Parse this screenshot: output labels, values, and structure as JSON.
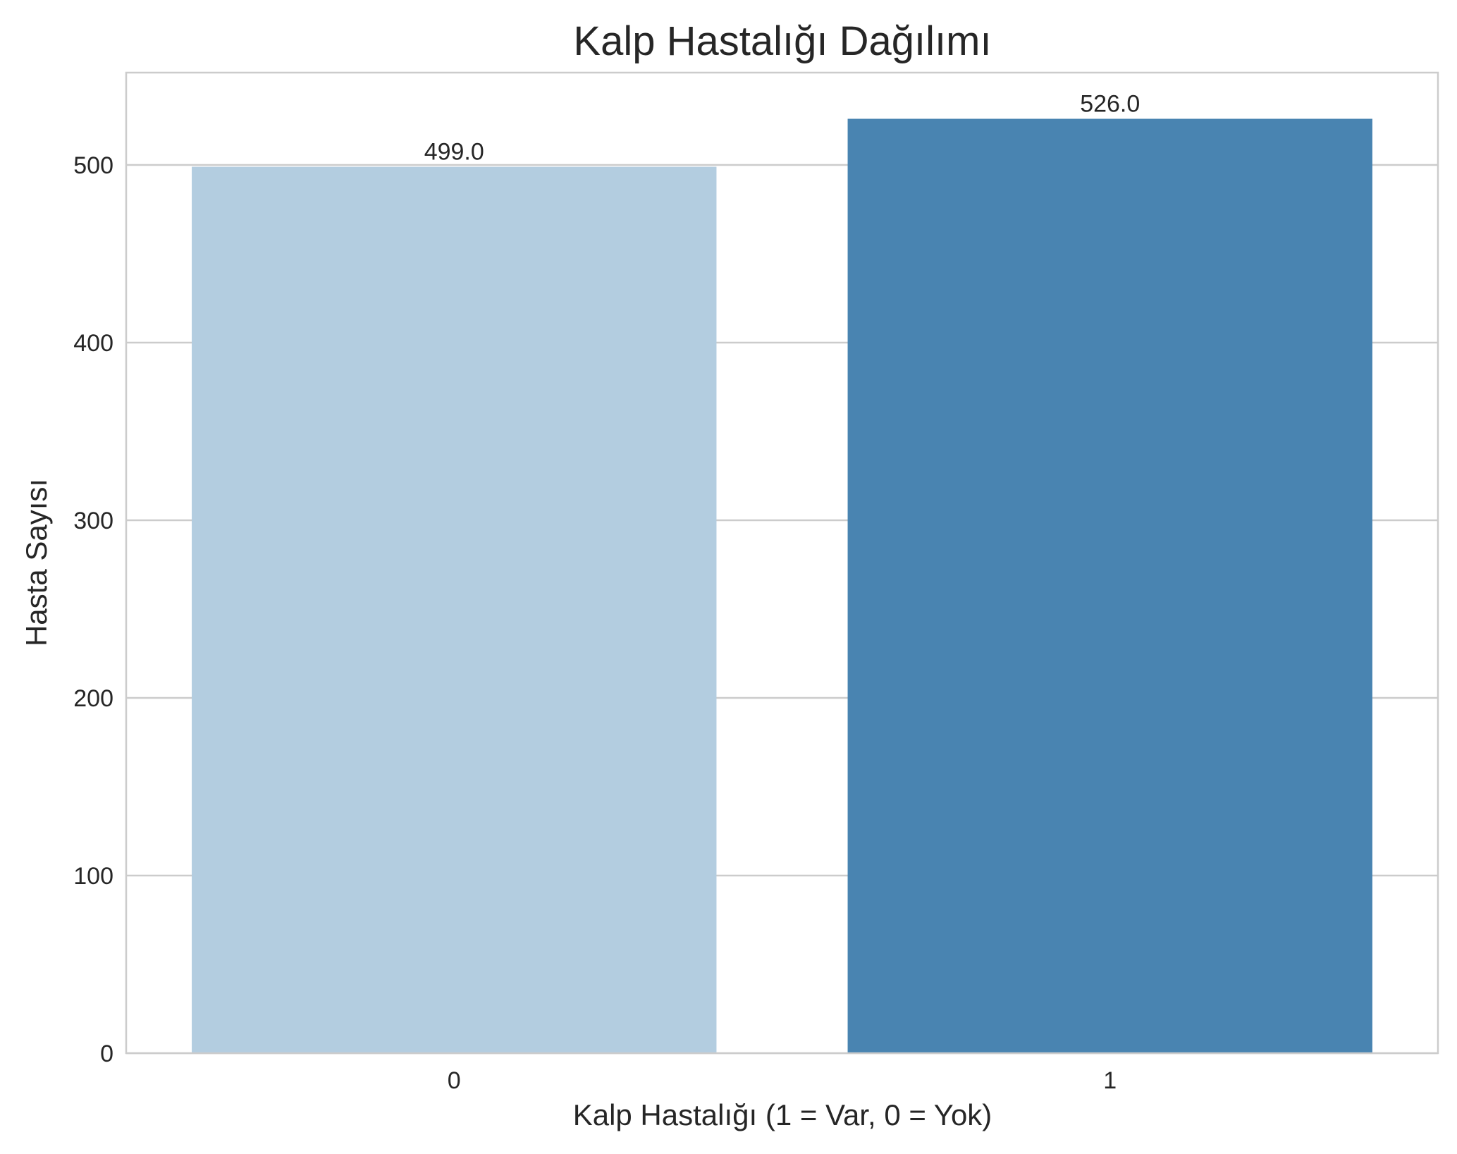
{
  "chart_data": {
    "type": "bar",
    "title": "Kalp Hastalığı Dağılımı",
    "xlabel": "Kalp Hastalığı (1 = Var, 0 = Yok)",
    "ylabel": "Hasta Sayısı",
    "categories": [
      "0",
      "1"
    ],
    "values": [
      499,
      526
    ],
    "value_labels": [
      "499.0",
      "526.0"
    ],
    "colors": [
      "#b3cde0",
      "#4984b1"
    ],
    "ylim": [
      0,
      552
    ],
    "yticks": [
      0,
      100,
      200,
      300,
      400,
      500
    ],
    "grid": "y",
    "legend": "none"
  }
}
